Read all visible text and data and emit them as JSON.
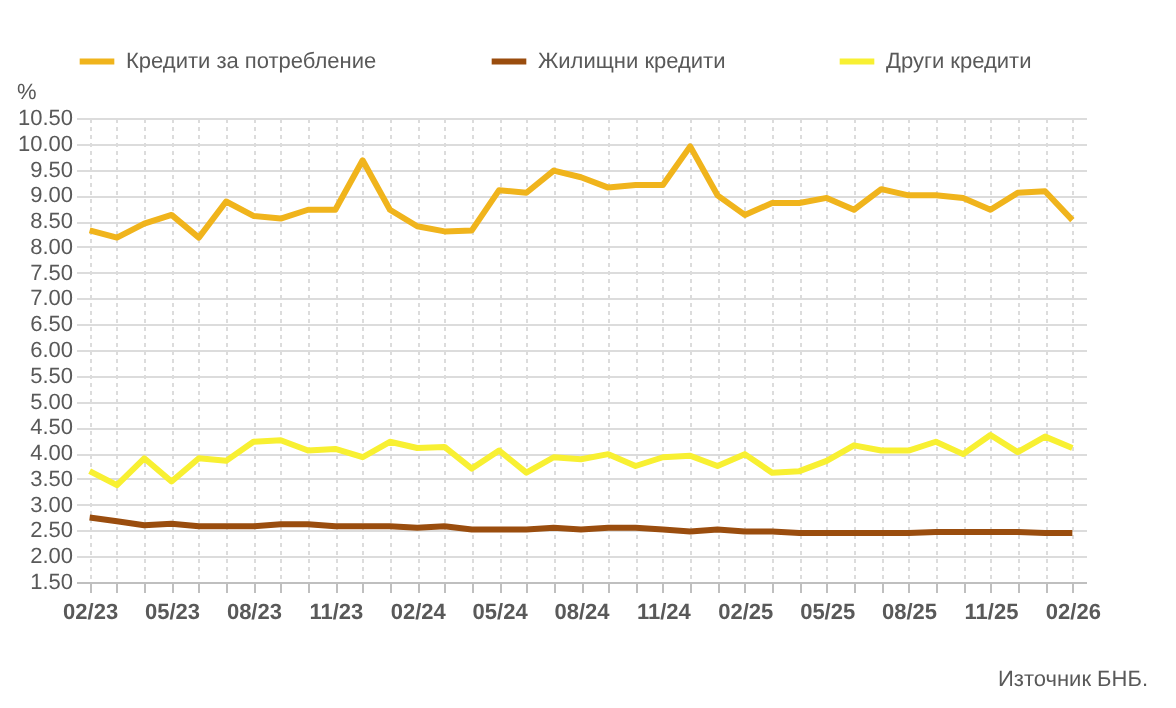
{
  "chart_data": {
    "type": "line",
    "ylabel": "%",
    "annotations": [
      "Източник БНБ."
    ],
    "categories": [
      "02/23",
      null,
      null,
      "05/23",
      null,
      null,
      "08/23",
      null,
      null,
      "11/23",
      null,
      null,
      "02/24",
      null,
      null,
      "05/24",
      null,
      null,
      "08/24",
      null,
      null,
      "11/24",
      null,
      null,
      "02/25",
      null,
      null,
      "05/25",
      null,
      null,
      "08/25",
      null,
      null,
      "11/25",
      null,
      null,
      "02/26"
    ],
    "series": [
      {
        "name": "Кредити за потребление",
        "color": "#f0b41c",
        "values": [
          8.32,
          8.18,
          8.45,
          8.62,
          8.18,
          8.88,
          8.6,
          8.55,
          8.72,
          8.72,
          9.68,
          8.72,
          8.4,
          8.3,
          8.32,
          9.1,
          9.05,
          9.48,
          9.35,
          9.15,
          9.2,
          9.2,
          9.95,
          9.0,
          8.62,
          8.85,
          8.85,
          8.95,
          8.72,
          9.12,
          9.0,
          9.0,
          8.95,
          8.72,
          9.05,
          9.08,
          8.52
        ]
      },
      {
        "name": "Жилищни кредити",
        "color": "#9a4d0e",
        "values": [
          2.75,
          2.68,
          2.6,
          2.63,
          2.58,
          2.58,
          2.58,
          2.62,
          2.62,
          2.58,
          2.58,
          2.58,
          2.55,
          2.58,
          2.52,
          2.52,
          2.52,
          2.55,
          2.52,
          2.55,
          2.55,
          2.52,
          2.48,
          2.52,
          2.48,
          2.48,
          2.45,
          2.45,
          2.45,
          2.45,
          2.45,
          2.47,
          2.47,
          2.47,
          2.47,
          2.45,
          2.45
        ]
      },
      {
        "name": "Други кредити",
        "color": "#f8f032",
        "values": [
          3.65,
          3.38,
          3.9,
          3.45,
          3.9,
          3.85,
          4.22,
          4.25,
          4.05,
          4.08,
          3.92,
          4.22,
          4.1,
          4.12,
          3.7,
          4.05,
          3.62,
          3.92,
          3.88,
          3.98,
          3.75,
          3.92,
          3.95,
          3.75,
          3.98,
          3.62,
          3.65,
          3.85,
          4.15,
          4.05,
          4.05,
          4.22,
          3.98,
          4.35,
          4.02,
          4.32,
          4.1
        ]
      }
    ],
    "ylim": [
      1.5,
      10.5
    ],
    "yticks": [
      {
        "value": 1.5,
        "label": "1.50"
      },
      {
        "value": 2,
        "label": "2.00"
      },
      {
        "value": 2.5,
        "label": "2.50"
      },
      {
        "value": 3,
        "label": "3.00"
      },
      {
        "value": 3.5,
        "label": "3.50"
      },
      {
        "value": 4,
        "label": "4.00"
      },
      {
        "value": 4.5,
        "label": "4.50"
      },
      {
        "value": 5,
        "label": "5.00"
      },
      {
        "value": 5.5,
        "label": "5.50"
      },
      {
        "value": 6,
        "label": "6.00"
      },
      {
        "value": 6.5,
        "label": "6.50"
      },
      {
        "value": 7,
        "label": "7.00"
      },
      {
        "value": 7.5,
        "label": "7.50"
      },
      {
        "value": 8,
        "label": "8.00"
      },
      {
        "value": 8.5,
        "label": "8.50"
      },
      {
        "value": 9,
        "label": "9.00"
      },
      {
        "value": 9.5,
        "label": "9.50"
      },
      {
        "value": 10,
        "label": "10.00"
      },
      {
        "value": 10.5,
        "label": "10.50"
      }
    ],
    "grid": true,
    "legend": "top",
    "marker": "none",
    "line_style": "solid"
  }
}
